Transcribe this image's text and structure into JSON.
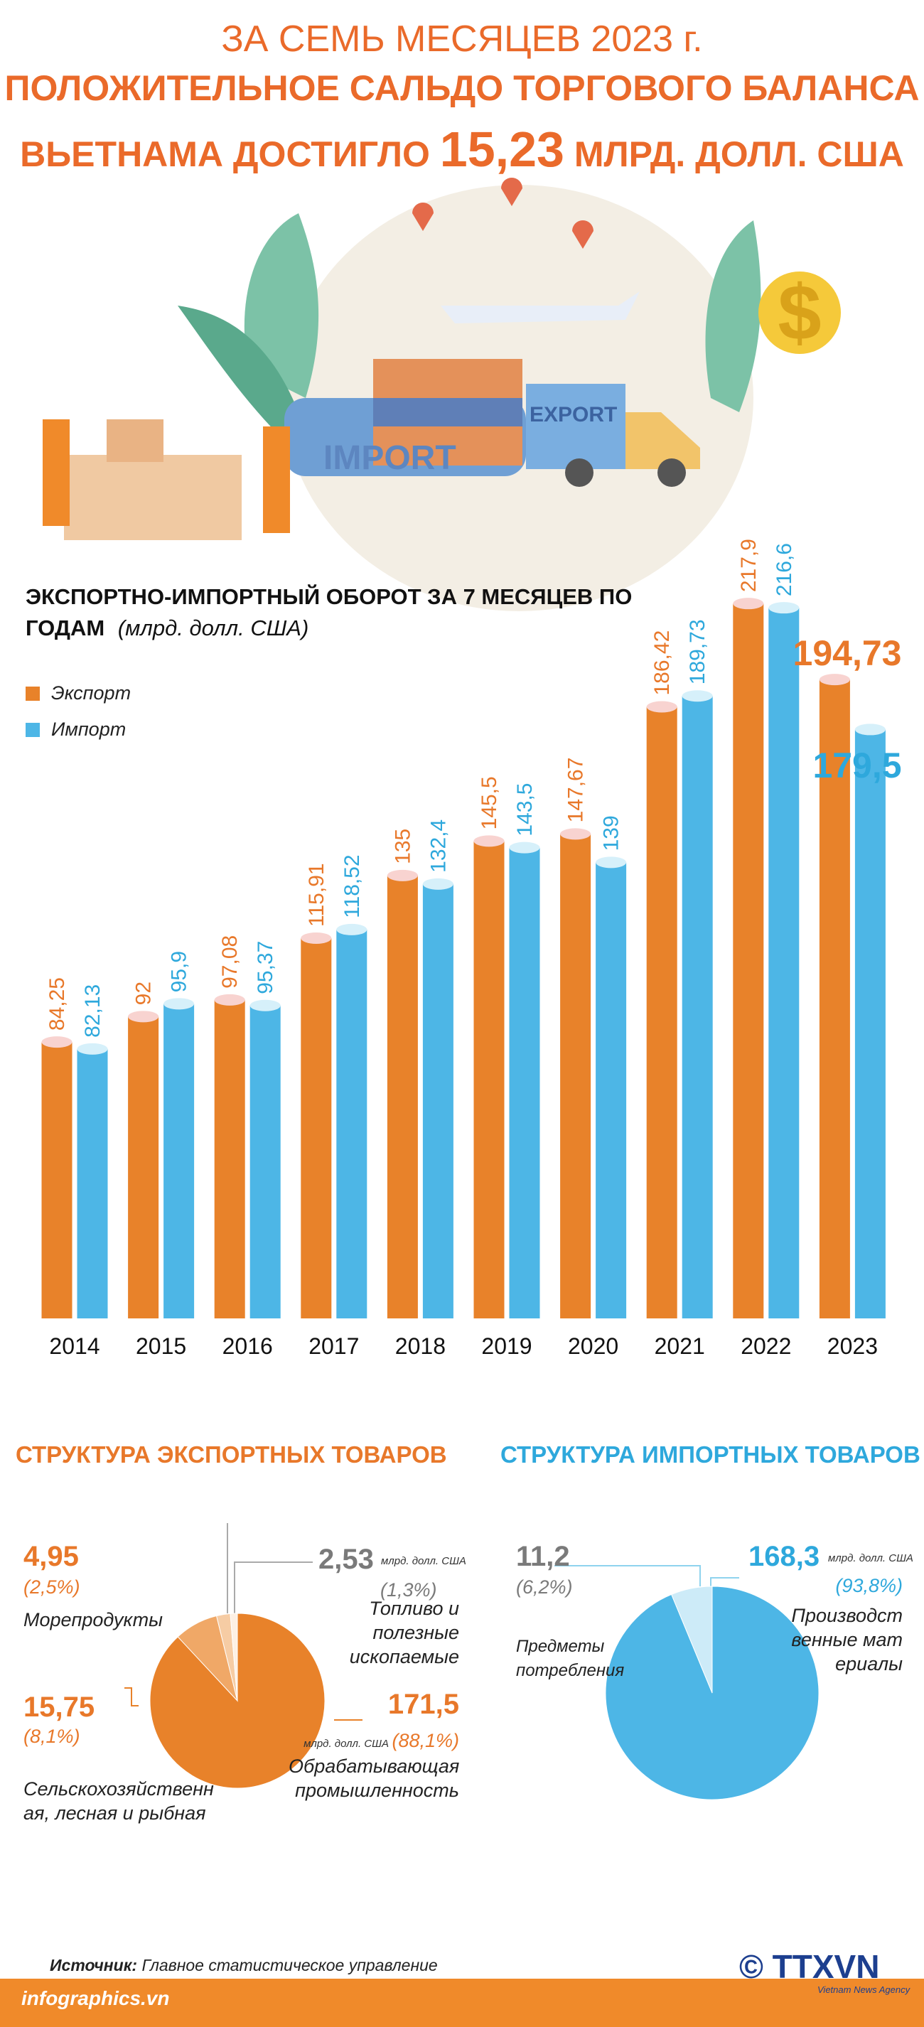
{
  "header": {
    "line1": "ЗА СЕМЬ МЕСЯЦЕВ 2023 г.",
    "line2": "ПОЛОЖИТЕЛЬНОЕ САЛЬДО ТОРГОВОГО БАЛАНСА",
    "line3a": "ВЬЕТНАМА ДОСТИГЛО",
    "highlight": "15,23",
    "line3b": "МЛРД. ДОЛЛ. США"
  },
  "illustration": {
    "import": "IMPORT",
    "export": "EXPORT",
    "dollar": "$"
  },
  "chart_data": [
    {
      "type": "bar",
      "title": "ЭКСПОРТНО-ИМПОРТНЫЙ ОБОРОТ ЗА 7 МЕСЯЦЕВ ПО ГОДАМ",
      "subtitle": "(млрд. долл. США)",
      "categories": [
        "2014",
        "2015",
        "2016",
        "2017",
        "2018",
        "2019",
        "2020",
        "2021",
        "2022",
        "2023"
      ],
      "series": [
        {
          "name": "Экспорт",
          "color": "#e8822a",
          "values": [
            84.25,
            92,
            97.08,
            115.91,
            135,
            145.5,
            147.67,
            186.42,
            217.9,
            194.73
          ],
          "value_labels": [
            "84,25",
            "92",
            "97,08",
            "115,91",
            "135",
            "145,5",
            "147,67",
            "186,42",
            "217,9",
            "194,73"
          ]
        },
        {
          "name": "Импорт",
          "color": "#4db6e6",
          "values": [
            82.13,
            95.9,
            95.37,
            118.52,
            132.4,
            143.5,
            139,
            189.73,
            216.6,
            179.5
          ],
          "value_labels": [
            "82,13",
            "95,9",
            "95,37",
            "118,52",
            "132,4",
            "143,5",
            "139",
            "189,73",
            "216,6",
            "179,5"
          ]
        }
      ],
      "legend": "top-left"
    },
    {
      "type": "pie",
      "title": "СТРУКТУРА ЭКСПОРТНЫХ ТОВАРОВ",
      "unit": "млрд. долл. США",
      "categories": [
        "Обрабатывающая промышленность",
        "Сельскохозяйственная, лесная и рыбная",
        "Морепродукты",
        "Топливо и полезные ископаемые"
      ],
      "values": [
        171.5,
        15.75,
        4.95,
        2.53
      ],
      "value_labels": [
        "171,5",
        "15,75",
        "4,95",
        "2,53"
      ],
      "percents": [
        88.1,
        8.1,
        2.5,
        1.3
      ],
      "percent_labels": [
        "(88,1%)",
        "(8,1%)",
        "(2,5%)",
        "(1,3%)"
      ],
      "colors": [
        "#e8822a",
        "#f0a867",
        "#f6cca4",
        "#fdf0e4"
      ]
    },
    {
      "type": "pie",
      "title": "СТРУКТУРА ИМПОРТНЫХ ТОВАРОВ",
      "unit": "млрд. долл. США",
      "categories": [
        "Производственные материалы",
        "Предметы потребления"
      ],
      "values": [
        168.3,
        11.2
      ],
      "value_labels": [
        "168,3",
        "11,2"
      ],
      "percents": [
        93.8,
        6.2
      ],
      "percent_labels": [
        "(93,8%)",
        "(6,2%)"
      ],
      "colors": [
        "#4db6e6",
        "#cdebf8"
      ]
    }
  ],
  "footer": {
    "source_label": "Источник:",
    "source": "Главное статистическое управление",
    "site": "infographics.vn",
    "logo": "© TTXVN",
    "agency": "Vietnam News Agency"
  }
}
